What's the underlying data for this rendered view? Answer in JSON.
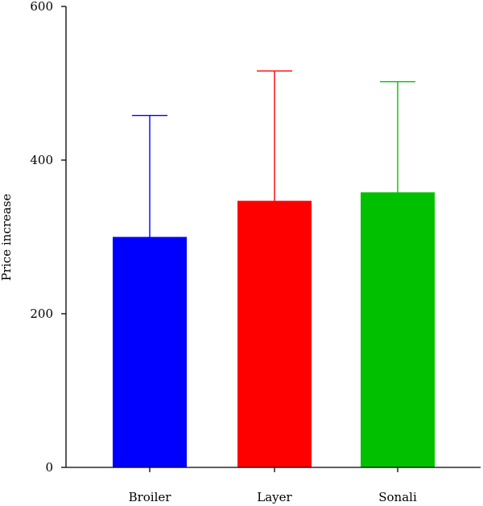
{
  "chart_data": {
    "type": "bar",
    "categories": [
      "Broiler",
      "Layer",
      "Sonali"
    ],
    "values": [
      300,
      347,
      358
    ],
    "error_upper": [
      458,
      516,
      502
    ],
    "colors": [
      "#0000ff",
      "#ff0000",
      "#00c000"
    ],
    "ylabel": "Price increase",
    "xlabel": "",
    "ylim": [
      0,
      600
    ],
    "yticks": [
      0,
      200,
      400,
      600
    ],
    "grid": false
  }
}
